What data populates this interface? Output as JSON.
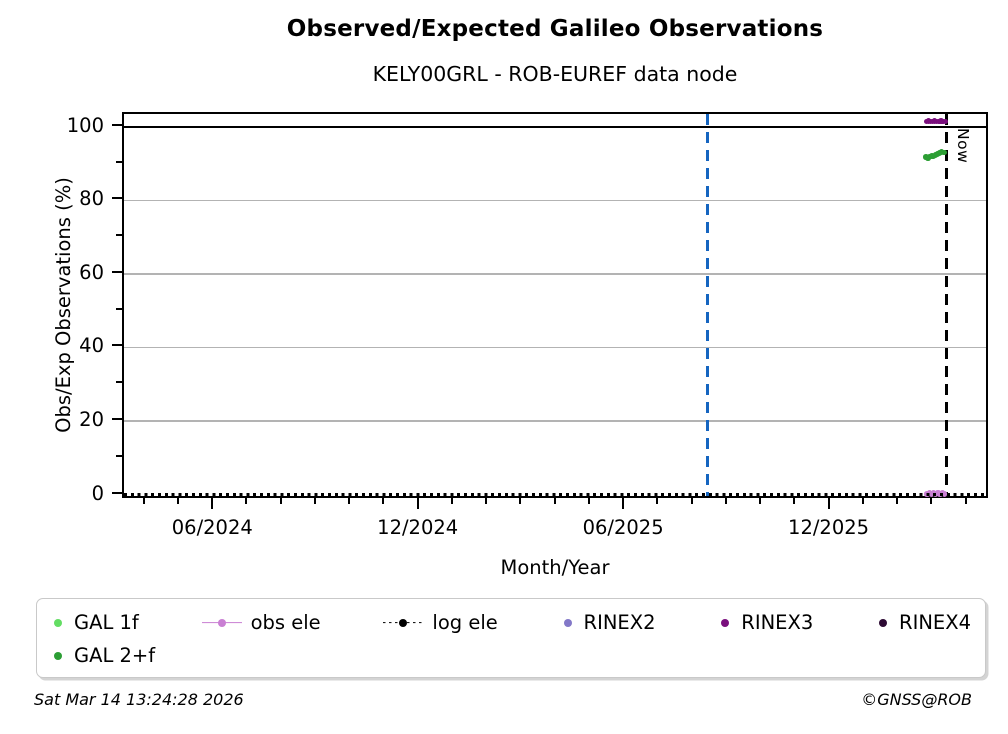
{
  "page": {
    "title": "Observed/Expected Galileo Observations",
    "subtitle": "KELY00GRL - ROB-EUREF data node",
    "footer_left": "Sat Mar 14 13:24:28 2026",
    "footer_right": "©GNSS@ROB"
  },
  "colors": {
    "grid": "#b3b3b3",
    "axis": "#000000",
    "release_vline": "#1565c0",
    "now_vline": "#000000"
  },
  "chart_data": {
    "type": "scatter",
    "title": "Observed/Expected Galileo Observations",
    "subtitle": "KELY00GRL - ROB-EUREF data node",
    "xlabel": "Month/Year",
    "ylabel": "Obs/Exp Observations (%)",
    "grid": true,
    "legend_position": "bottom",
    "xlim_decimal_year": [
      2024.197,
      2026.295
    ],
    "ylim": [
      -0.4,
      103.5
    ],
    "x_major_ticks": [
      {
        "decimal_year": 2024.4167,
        "label": "06/2024"
      },
      {
        "decimal_year": 2024.9167,
        "label": "12/2024"
      },
      {
        "decimal_year": 2025.4167,
        "label": "06/2025"
      },
      {
        "decimal_year": 2025.9167,
        "label": "12/2025"
      }
    ],
    "x_minor_ticks_every_months": 1,
    "y_major_ticks": [
      {
        "value": 0,
        "label": "0"
      },
      {
        "value": 20,
        "label": "20"
      },
      {
        "value": 40,
        "label": "40"
      },
      {
        "value": 60,
        "label": "60"
      },
      {
        "value": 80,
        "label": "80"
      },
      {
        "value": 100,
        "label": "100"
      }
    ],
    "y_minor_ticks": [
      10,
      30,
      50,
      70,
      90
    ],
    "y_gridline_values": [
      20,
      40,
      60,
      80,
      100
    ],
    "reference_lines": [
      {
        "id": "expected-100",
        "type": "hline",
        "y": 100,
        "style": "solid",
        "color": "#000000"
      },
      {
        "id": "release-date",
        "type": "vline",
        "x": 2025.617,
        "style": "dashed",
        "color": "#1565c0"
      },
      {
        "id": "now",
        "type": "vline",
        "x": 2026.2,
        "style": "dashed",
        "color": "#000000",
        "label": "Now"
      }
    ],
    "now_label": "Now",
    "series": [
      {
        "name": "GAL 1f",
        "color": "#63dd63",
        "marker": "dot",
        "line": "none",
        "points": []
      },
      {
        "name": "GAL 2+f",
        "color": "#2c9e34",
        "marker": "dot",
        "line": "none",
        "points": [
          [
            2026.149,
            91.8
          ],
          [
            2026.154,
            91.5
          ],
          [
            2026.158,
            91.9
          ],
          [
            2026.163,
            92.1
          ],
          [
            2026.167,
            92.0
          ],
          [
            2026.172,
            92.3
          ],
          [
            2026.177,
            92.6
          ],
          [
            2026.182,
            92.9
          ],
          [
            2026.187,
            93.1
          ],
          [
            2026.193,
            93.0
          ]
        ]
      },
      {
        "name": "obs ele",
        "color": "#c97fd3",
        "marker": "dot",
        "line": "solid",
        "points": [
          [
            2026.151,
            0.2
          ],
          [
            2026.157,
            0.5
          ],
          [
            2026.162,
            0.2
          ],
          [
            2026.167,
            0.6
          ],
          [
            2026.172,
            0.2
          ],
          [
            2026.178,
            0.5
          ],
          [
            2026.183,
            0.2
          ],
          [
            2026.189,
            0.5
          ],
          [
            2026.194,
            0.2
          ]
        ]
      },
      {
        "name": "log ele",
        "color": "#000000",
        "marker": "dot",
        "line": "dotted",
        "hline_y": 0,
        "points": []
      },
      {
        "name": "RINEX2",
        "color": "#8378c8",
        "marker": "dot",
        "line": "none",
        "points": []
      },
      {
        "name": "RINEX3",
        "color": "#7a0f7d",
        "marker": "dot",
        "line": "none",
        "points": [
          [
            2026.15,
            101.5
          ],
          [
            2026.155,
            101.6
          ],
          [
            2026.16,
            101.4
          ],
          [
            2026.165,
            101.5
          ],
          [
            2026.17,
            101.6
          ],
          [
            2026.175,
            101.5
          ],
          [
            2026.18,
            101.4
          ],
          [
            2026.185,
            101.6
          ],
          [
            2026.19,
            101.5
          ],
          [
            2026.196,
            101.5
          ]
        ]
      },
      {
        "name": "RINEX4",
        "color": "#2d0a33",
        "marker": "dot",
        "line": "none",
        "points": []
      }
    ]
  },
  "legend": {
    "rows": [
      [
        {
          "label": "GAL 1f",
          "color": "#63dd63",
          "marker": "dot"
        },
        {
          "label": "obs ele",
          "color": "#c97fd3",
          "marker": "line-dot"
        },
        {
          "label": "log ele",
          "color": "#000000",
          "marker": "dotted-line-dot"
        },
        {
          "label": "RINEX2",
          "color": "#8378c8",
          "marker": "dot"
        },
        {
          "label": "RINEX3",
          "color": "#7a0f7d",
          "marker": "dot"
        },
        {
          "label": "RINEX4",
          "color": "#2d0a33",
          "marker": "dot"
        }
      ],
      [
        {
          "label": "GAL 2+f",
          "color": "#2c9e34",
          "marker": "dot"
        }
      ]
    ]
  }
}
